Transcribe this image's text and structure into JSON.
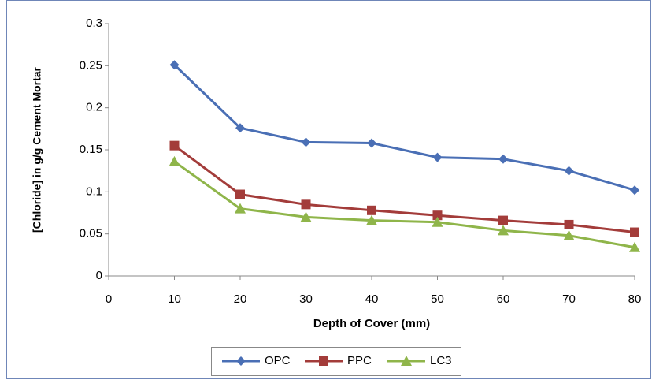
{
  "chart_data": {
    "type": "line",
    "y_label": "[Chloride] in g/g Cement Mortar",
    "x_label": "Depth of Cover (mm)",
    "x": [
      10,
      20,
      30,
      40,
      50,
      60,
      70,
      80
    ],
    "series": [
      {
        "name": "OPC",
        "color": "#4a6fb5",
        "marker": "diamond",
        "values": [
          0.251,
          0.176,
          0.159,
          0.158,
          0.141,
          0.139,
          0.125,
          0.102
        ]
      },
      {
        "name": "PPC",
        "color": "#a33c3a",
        "marker": "square",
        "values": [
          0.155,
          0.097,
          0.085,
          0.078,
          0.072,
          0.066,
          0.061,
          0.052
        ]
      },
      {
        "name": "LC3",
        "color": "#8fb54a",
        "marker": "triangle",
        "values": [
          0.136,
          0.08,
          0.07,
          0.066,
          0.064,
          0.054,
          0.048,
          0.034
        ]
      }
    ],
    "xlim": [
      0,
      80
    ],
    "xticks": [
      0,
      10,
      20,
      30,
      40,
      50,
      60,
      70,
      80
    ],
    "ylim": [
      0,
      0.3
    ],
    "yticks": [
      0,
      0.05,
      0.1,
      0.15,
      0.2,
      0.25,
      0.3
    ],
    "grid": false,
    "legend": "bottom"
  }
}
